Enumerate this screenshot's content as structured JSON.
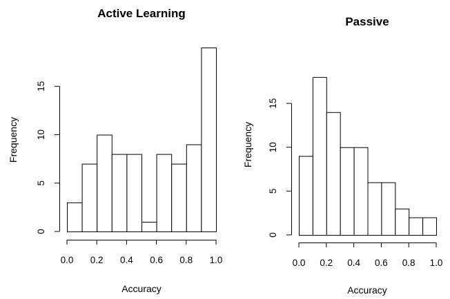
{
  "chart_data": [
    {
      "type": "bar",
      "title": "Active Learning",
      "xlabel": "Accuracy",
      "ylabel": "Frequency",
      "bin_edges": [
        0.0,
        0.1,
        0.2,
        0.3,
        0.4,
        0.5,
        0.6,
        0.7,
        0.8,
        0.9,
        1.0
      ],
      "values": [
        3,
        7,
        10,
        8,
        8,
        1,
        8,
        7,
        9,
        19
      ],
      "xlim": [
        0.0,
        1.0
      ],
      "ylim": [
        0,
        19
      ],
      "x_ticks": [
        0.0,
        0.2,
        0.4,
        0.6,
        0.8,
        1.0
      ],
      "x_tick_labels": [
        "0.0",
        "0.2",
        "0.4",
        "0.6",
        "0.8",
        "1.0"
      ],
      "y_ticks": [
        0,
        5,
        10,
        15
      ],
      "y_tick_labels": [
        "0",
        "5",
        "10",
        "15"
      ],
      "grid": false,
      "legend": "none"
    },
    {
      "type": "bar",
      "title": "Passive",
      "xlabel": "Accuracy",
      "ylabel": "Frequency",
      "bin_edges": [
        0.0,
        0.1,
        0.2,
        0.3,
        0.4,
        0.5,
        0.6,
        0.7,
        0.8,
        0.9,
        1.0
      ],
      "values": [
        9,
        18,
        14,
        10,
        10,
        6,
        6,
        3,
        2,
        2
      ],
      "xlim": [
        0.0,
        1.0
      ],
      "ylim": [
        0,
        18
      ],
      "x_ticks": [
        0.0,
        0.2,
        0.4,
        0.6,
        0.8,
        1.0
      ],
      "x_tick_labels": [
        "0.0",
        "0.2",
        "0.4",
        "0.6",
        "0.8",
        "1.0"
      ],
      "y_ticks": [
        0,
        5,
        10,
        15
      ],
      "y_tick_labels": [
        "0",
        "5",
        "10",
        "15"
      ],
      "grid": false,
      "legend": "none"
    }
  ]
}
